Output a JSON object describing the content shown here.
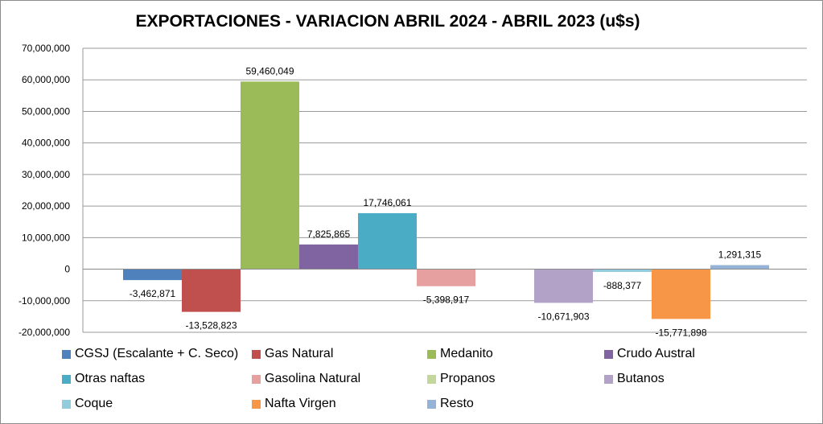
{
  "chart_data": {
    "type": "bar",
    "title": "EXPORTACIONES - VARIACION ABRIL 2024 - ABRIL 2023 (u$s)",
    "xlabel": "",
    "ylabel": "",
    "ylim": [
      -20000000,
      70000000
    ],
    "yticks": [
      70000000,
      60000000,
      50000000,
      40000000,
      30000000,
      20000000,
      10000000,
      0,
      -10000000,
      -20000000
    ],
    "ytick_labels": [
      "70,000,000",
      "60,000,000",
      "50,000,000",
      "40,000,000",
      "30,000,000",
      "20,000,000",
      "10,000,000",
      "0",
      "-10,000,000",
      "-20,000,000"
    ],
    "grid": true,
    "legend_position": "bottom",
    "series": [
      {
        "name": "CGSJ (Escalante + C. Seco)",
        "value": -3462871,
        "label": "-3,462,871",
        "color": "#4F81BD"
      },
      {
        "name": "Gas Natural",
        "value": -13528823,
        "label": "-13,528,823",
        "color": "#C0504D"
      },
      {
        "name": "Medanito",
        "value": 59460049,
        "label": "59,460,049",
        "color": "#9BBB59"
      },
      {
        "name": "Crudo Austral",
        "value": 7825865,
        "label": "7,825,865",
        "color": "#8064A2"
      },
      {
        "name": "Otras naftas",
        "value": 17746061,
        "label": "17,746,061",
        "color": "#4BACC6"
      },
      {
        "name": "Gasolina Natural",
        "value": -5398917,
        "label": "-5,398,917",
        "color": "#E6A0A0"
      },
      {
        "name": "Propanos",
        "value": 0,
        "label": "",
        "color": "#C3D69B"
      },
      {
        "name": "Butanos",
        "value": -10671903,
        "label": "-10,671,903",
        "color": "#B3A2C7"
      },
      {
        "name": "Coque",
        "value": -888377,
        "label": "-888,377",
        "color": "#93CDDD"
      },
      {
        "name": "Nafta Virgen",
        "value": -15771898,
        "label": "-15,771,898",
        "color": "#F79646"
      },
      {
        "name": "Resto",
        "value": 1291315,
        "label": "1,291,315",
        "color": "#95B3D7"
      }
    ]
  }
}
